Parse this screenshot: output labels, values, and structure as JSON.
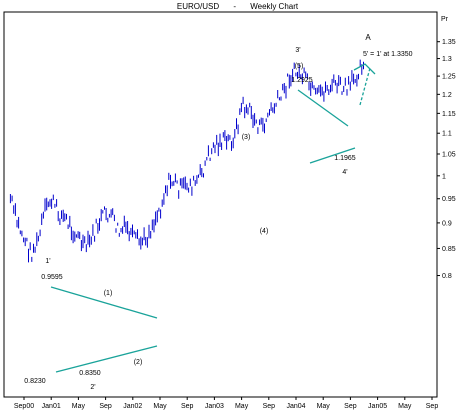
{
  "header": {
    "symbol": "EURO/USD",
    "separator": "-",
    "period": "Weekly Chart"
  },
  "colors": {
    "price": "#0000cc",
    "trendline": "#1aa39a",
    "axis": "#000000",
    "background": "#ffffff"
  },
  "chart_data": {
    "type": "line",
    "title": "EURO/USD - Weekly Chart",
    "ylabel": "Pr",
    "scale": "log",
    "grid": false,
    "ylim": [
      0.78,
      1.42
    ],
    "y_ticks": [
      "1.35",
      "1.3",
      "1.25",
      "1.2",
      "1.15",
      "1.1",
      "1.05",
      "1",
      "0.95",
      "0.9",
      "0.85",
      "0.8"
    ],
    "y_tick_values": [
      1.35,
      1.3,
      1.25,
      1.2,
      1.15,
      1.1,
      1.05,
      1.0,
      0.95,
      0.9,
      0.85,
      0.8
    ],
    "x_ticks": [
      "Sep00",
      "Jan01",
      "May",
      "Sep",
      "Jan02",
      "May",
      "Sep",
      "Jan03",
      "May",
      "Sep",
      "Jan04",
      "May",
      "Sep",
      "Jan05",
      "May",
      "Sep"
    ],
    "x_tick_dates": [
      "2000-09",
      "2001-01",
      "2001-05",
      "2001-09",
      "2002-01",
      "2002-05",
      "2002-09",
      "2003-01",
      "2003-05",
      "2003-09",
      "2004-01",
      "2004-05",
      "2004-09",
      "2005-01",
      "2005-05",
      "2005-09"
    ],
    "series": [
      {
        "x": [
          "2000-07",
          "2000-08",
          "2000-09",
          "2000-10",
          "2000-11",
          "2000-12",
          "2001-01",
          "2001-02",
          "2001-03",
          "2001-04",
          "2001-05",
          "2001-06",
          "2001-07",
          "2001-08",
          "2001-09",
          "2001-10",
          "2001-11",
          "2001-12",
          "2002-01",
          "2002-02",
          "2002-03",
          "2002-04",
          "2002-05",
          "2002-06",
          "2002-07",
          "2002-08",
          "2002-09",
          "2002-10",
          "2002-11",
          "2002-12",
          "2003-01",
          "2003-02",
          "2003-03",
          "2003-04",
          "2003-05",
          "2003-06",
          "2003-07",
          "2003-08",
          "2003-09",
          "2003-10",
          "2003-11",
          "2003-12",
          "2004-01",
          "2004-02",
          "2004-03",
          "2004-04",
          "2004-05",
          "2004-06",
          "2004-07",
          "2004-08",
          "2004-09",
          "2004-10",
          "2004-11"
        ],
        "y": [
          0.95,
          0.9,
          0.87,
          0.84,
          0.86,
          0.92,
          0.95,
          0.92,
          0.91,
          0.89,
          0.87,
          0.85,
          0.87,
          0.9,
          0.92,
          0.91,
          0.88,
          0.89,
          0.87,
          0.86,
          0.87,
          0.9,
          0.93,
          0.98,
          0.99,
          0.97,
          0.98,
          0.98,
          1.0,
          1.04,
          1.07,
          1.08,
          1.08,
          1.09,
          1.17,
          1.16,
          1.13,
          1.11,
          1.15,
          1.17,
          1.2,
          1.25,
          1.26,
          1.25,
          1.22,
          1.19,
          1.21,
          1.22,
          1.23,
          1.21,
          1.22,
          1.26,
          1.3
        ]
      }
    ],
    "annotations": [
      "EURO/USD",
      "Weekly Chart",
      "1'",
      "0.9595",
      "(1)",
      "0.8230",
      "0.8350",
      "(2)",
      "2'",
      "(3)",
      "(4)",
      "3'",
      "(5)",
      "1.2925",
      "1.1965",
      "4'",
      "A",
      "5' = 1' at 1.3350"
    ]
  },
  "labels": {
    "wave_1p": "1'",
    "price_0_9595": "0.9595",
    "wave_1": "(1)",
    "price_0_8230": "0.8230",
    "price_0_8350": "0.8350",
    "wave_2": "(2)",
    "wave_2p": "2'",
    "wave_3": "(3)",
    "wave_4": "(4)",
    "wave_3p": "3'",
    "wave_5": "(5)",
    "price_1_2925": "1.2925",
    "price_1_1965": "1.1965",
    "wave_4p": "4'",
    "wave_a": "A",
    "projection": "5' = 1' at 1.3350"
  }
}
